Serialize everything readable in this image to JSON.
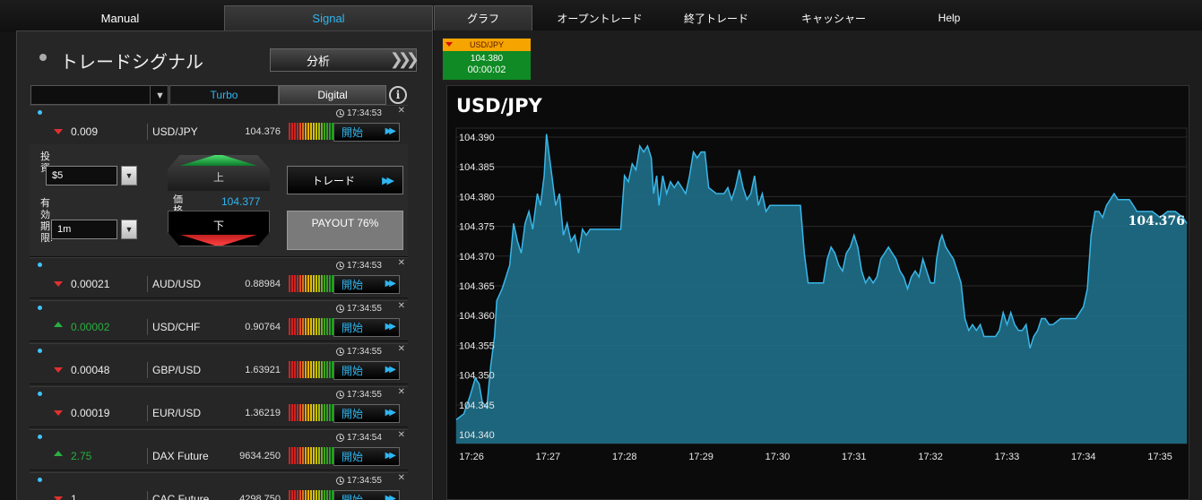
{
  "tabs_left": {
    "manual": "Manual",
    "signal": "Signal"
  },
  "tabs_right": [
    "グラフ",
    "オープントレード",
    "終了トレード",
    "キャッシャー",
    "Help"
  ],
  "left": {
    "title": "トレードシグナル",
    "analyze_label": "分析",
    "filter_tabs": {
      "turbo": "Turbo",
      "digital": "Digital"
    },
    "info_icon": "i"
  },
  "signals": [
    {
      "time": "17:34:53",
      "direction": "down",
      "change": "0.009",
      "pair": "USD/JPY",
      "price": "104.376",
      "start": "開始"
    },
    {
      "time": "17:34:53",
      "direction": "down",
      "change": "0.00021",
      "pair": "AUD/USD",
      "price": "0.88984",
      "start": "開始"
    },
    {
      "time": "17:34:55",
      "direction": "up",
      "change": "0.00002",
      "pair": "USD/CHF",
      "price": "0.90764",
      "start": "開始"
    },
    {
      "time": "17:34:55",
      "direction": "down",
      "change": "0.00048",
      "pair": "GBP/USD",
      "price": "1.63921",
      "start": "開始"
    },
    {
      "time": "17:34:55",
      "direction": "down",
      "change": "0.00019",
      "pair": "EUR/USD",
      "price": "1.36219",
      "start": "開始"
    },
    {
      "time": "17:34:54",
      "direction": "up",
      "change": "2.75",
      "pair": "DAX Future",
      "price": "9634.250",
      "start": "開始"
    },
    {
      "time": "17:34:55",
      "direction": "down",
      "change": "1",
      "pair": "CAC Future",
      "price": "4298.750",
      "start": "開始"
    }
  ],
  "trade": {
    "invest_label": "投資",
    "invest_value": "$5",
    "expiry_label": "有効期限:",
    "expiry_value": "1m",
    "up_label": "上",
    "down_label": "下",
    "price_label": "価格",
    "price_value": "104.377",
    "trade_label": "トレード",
    "payout": "PAYOUT 76%"
  },
  "ticker": {
    "pair": "USD/JPY",
    "price": "104.380",
    "countdown": "00:00:02"
  },
  "chart_data": {
    "type": "area",
    "title": "USD/JPY",
    "current_label": "104.376",
    "ylim": [
      104.3385,
      104.3915
    ],
    "yticks": [
      104.34,
      104.345,
      104.35,
      104.355,
      104.36,
      104.365,
      104.37,
      104.375,
      104.38,
      104.385,
      104.39
    ],
    "xticks": [
      "17:26",
      "17:27",
      "17:28",
      "17:29",
      "17:30",
      "17:31",
      "17:32",
      "17:33",
      "17:34",
      "17:35"
    ],
    "xlim_minutes": [
      -0.2,
      9.35
    ],
    "grid": true,
    "colors": {
      "line": "#39b6e8",
      "fill": "#1f6f88"
    },
    "series": [
      {
        "values": [
          [
            -0.2,
            104.3425
          ],
          [
            -0.1,
            104.3435
          ],
          [
            -0.02,
            104.3465
          ],
          [
            0.05,
            104.3495
          ],
          [
            0.1,
            104.3485
          ],
          [
            0.14,
            104.3455
          ],
          [
            0.2,
            104.3445
          ],
          [
            0.25,
            104.3515
          ],
          [
            0.3,
            104.3565
          ],
          [
            0.33,
            104.3625
          ],
          [
            0.4,
            104.3645
          ],
          [
            0.45,
            104.3665
          ],
          [
            0.5,
            104.3685
          ],
          [
            0.55,
            104.3755
          ],
          [
            0.6,
            104.3725
          ],
          [
            0.65,
            104.3705
          ],
          [
            0.7,
            104.3755
          ],
          [
            0.75,
            104.3775
          ],
          [
            0.8,
            104.3745
          ],
          [
            0.86,
            104.3805
          ],
          [
            0.9,
            104.3785
          ],
          [
            0.95,
            104.3835
          ],
          [
            0.98,
            104.3905
          ],
          [
            1.02,
            104.3865
          ],
          [
            1.05,
            104.3835
          ],
          [
            1.1,
            104.3785
          ],
          [
            1.15,
            104.3805
          ],
          [
            1.2,
            104.3735
          ],
          [
            1.25,
            104.3755
          ],
          [
            1.3,
            104.3725
          ],
          [
            1.35,
            104.3735
          ],
          [
            1.4,
            104.3705
          ],
          [
            1.45,
            104.3745
          ],
          [
            1.5,
            104.3735
          ],
          [
            1.55,
            104.3745
          ],
          [
            1.6,
            104.3745
          ],
          [
            1.7,
            104.3745
          ],
          [
            1.8,
            104.3745
          ],
          [
            1.9,
            104.3745
          ],
          [
            1.95,
            104.3745
          ],
          [
            2.0,
            104.3835
          ],
          [
            2.05,
            104.3825
          ],
          [
            2.1,
            104.3855
          ],
          [
            2.15,
            104.3845
          ],
          [
            2.2,
            104.3885
          ],
          [
            2.25,
            104.3875
          ],
          [
            2.3,
            104.3885
          ],
          [
            2.35,
            104.3865
          ],
          [
            2.38,
            104.3805
          ],
          [
            2.42,
            104.3835
          ],
          [
            2.45,
            104.3785
          ],
          [
            2.5,
            104.3835
          ],
          [
            2.55,
            104.3805
          ],
          [
            2.6,
            104.3825
          ],
          [
            2.65,
            104.3815
          ],
          [
            2.7,
            104.3825
          ],
          [
            2.75,
            104.3815
          ],
          [
            2.8,
            104.3805
          ],
          [
            2.85,
            104.3835
          ],
          [
            2.9,
            104.3875
          ],
          [
            2.95,
            104.3865
          ],
          [
            3.0,
            104.3875
          ],
          [
            3.05,
            104.3875
          ],
          [
            3.1,
            104.3815
          ],
          [
            3.2,
            104.3805
          ],
          [
            3.3,
            104.3805
          ],
          [
            3.35,
            104.3815
          ],
          [
            3.4,
            104.3795
          ],
          [
            3.45,
            104.3815
          ],
          [
            3.5,
            104.3845
          ],
          [
            3.55,
            104.3815
          ],
          [
            3.6,
            104.3795
          ],
          [
            3.65,
            104.3805
          ],
          [
            3.7,
            104.3835
          ],
          [
            3.75,
            104.3785
          ],
          [
            3.8,
            104.3805
          ],
          [
            3.85,
            104.3775
          ],
          [
            3.9,
            104.3785
          ],
          [
            4.0,
            104.3785
          ],
          [
            4.1,
            104.3785
          ],
          [
            4.2,
            104.3785
          ],
          [
            4.3,
            104.3785
          ],
          [
            4.35,
            104.3705
          ],
          [
            4.4,
            104.3655
          ],
          [
            4.5,
            104.3655
          ],
          [
            4.6,
            104.3655
          ],
          [
            4.65,
            104.3695
          ],
          [
            4.7,
            104.3715
          ],
          [
            4.75,
            104.3705
          ],
          [
            4.8,
            104.3685
          ],
          [
            4.85,
            104.3675
          ],
          [
            4.9,
            104.3705
          ],
          [
            4.95,
            104.3715
          ],
          [
            5.0,
            104.3735
          ],
          [
            5.05,
            104.3715
          ],
          [
            5.1,
            104.3675
          ],
          [
            5.15,
            104.3655
          ],
          [
            5.2,
            104.3665
          ],
          [
            5.25,
            104.3655
          ],
          [
            5.3,
            104.3665
          ],
          [
            5.35,
            104.3695
          ],
          [
            5.4,
            104.3705
          ],
          [
            5.45,
            104.3715
          ],
          [
            5.5,
            104.3705
          ],
          [
            5.55,
            104.3695
          ],
          [
            5.6,
            104.3675
          ],
          [
            5.65,
            104.3665
          ],
          [
            5.7,
            104.3645
          ],
          [
            5.75,
            104.3665
          ],
          [
            5.8,
            104.3675
          ],
          [
            5.85,
            104.3665
          ],
          [
            5.9,
            104.3695
          ],
          [
            5.95,
            104.3675
          ],
          [
            6.0,
            104.3655
          ],
          [
            6.05,
            104.3655
          ],
          [
            6.08,
            104.3695
          ],
          [
            6.12,
            104.3725
          ],
          [
            6.15,
            104.3735
          ],
          [
            6.2,
            104.3715
          ],
          [
            6.25,
            104.3705
          ],
          [
            6.3,
            104.3695
          ],
          [
            6.35,
            104.3675
          ],
          [
            6.4,
            104.3655
          ],
          [
            6.45,
            104.3595
          ],
          [
            6.5,
            104.3575
          ],
          [
            6.55,
            104.3585
          ],
          [
            6.6,
            104.3575
          ],
          [
            6.65,
            104.3585
          ],
          [
            6.7,
            104.3565
          ],
          [
            6.8,
            104.3565
          ],
          [
            6.85,
            104.3565
          ],
          [
            6.9,
            104.3575
          ],
          [
            6.95,
            104.3605
          ],
          [
            7.0,
            104.3585
          ],
          [
            7.05,
            104.3605
          ],
          [
            7.1,
            104.3585
          ],
          [
            7.15,
            104.3575
          ],
          [
            7.2,
            104.3575
          ],
          [
            7.25,
            104.3585
          ],
          [
            7.3,
            104.3545
          ],
          [
            7.35,
            104.3565
          ],
          [
            7.4,
            104.3575
          ],
          [
            7.45,
            104.3595
          ],
          [
            7.5,
            104.3595
          ],
          [
            7.55,
            104.3585
          ],
          [
            7.6,
            104.3585
          ],
          [
            7.7,
            104.3595
          ],
          [
            7.8,
            104.3595
          ],
          [
            7.9,
            104.3595
          ],
          [
            8.0,
            104.3615
          ],
          [
            8.05,
            104.3645
          ],
          [
            8.1,
            104.3735
          ],
          [
            8.15,
            104.3775
          ],
          [
            8.2,
            104.3775
          ],
          [
            8.25,
            104.3765
          ],
          [
            8.3,
            104.3785
          ],
          [
            8.35,
            104.3795
          ],
          [
            8.4,
            104.3805
          ],
          [
            8.45,
            104.3795
          ],
          [
            8.5,
            104.3795
          ],
          [
            8.55,
            104.3795
          ],
          [
            8.6,
            104.3795
          ],
          [
            8.65,
            104.3785
          ],
          [
            8.7,
            104.3775
          ],
          [
            8.8,
            104.3775
          ],
          [
            8.9,
            104.3775
          ],
          [
            9.0,
            104.3765
          ],
          [
            9.1,
            104.3775
          ],
          [
            9.2,
            104.3775
          ],
          [
            9.3,
            104.3765
          ],
          [
            9.35,
            104.3755
          ]
        ]
      }
    ]
  }
}
